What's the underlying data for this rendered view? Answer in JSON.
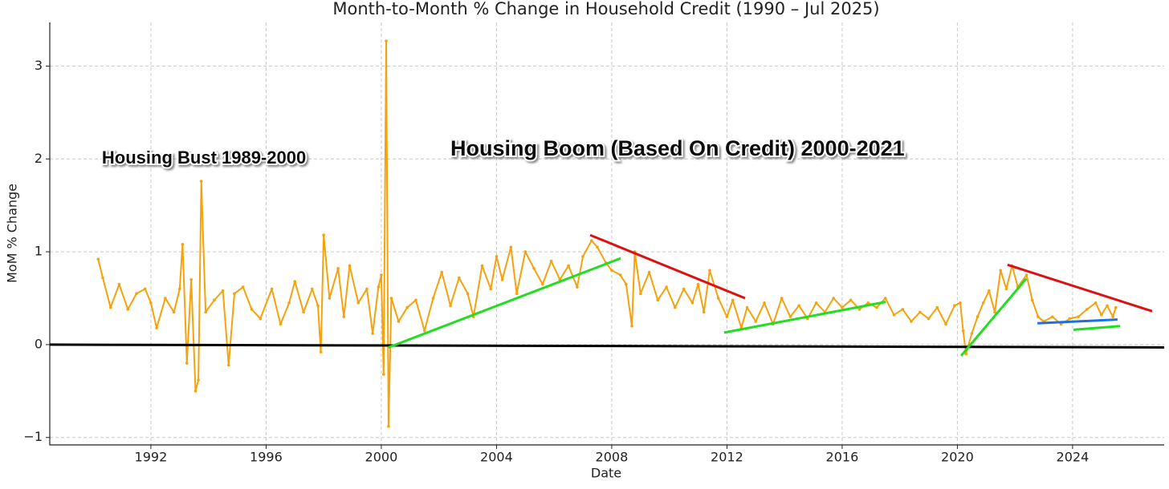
{
  "chart_data": {
    "type": "line",
    "title": "Month-to-Month % Change in Household Credit (1990 – Jul 2025)",
    "xlabel": "Date",
    "ylabel": "MoM % Change",
    "annotations": [
      {
        "text": "Housing Bust 1989-2000",
        "x": 1990.3,
        "y": 2.0
      },
      {
        "text": "Housing Boom (Based On Credit) 2000-2021",
        "x": 2002.4,
        "y": 2.1
      }
    ],
    "xlim": [
      1988.49,
      2027.18
    ],
    "ylim": [
      -1.08,
      3.47
    ],
    "xticks": [
      1992,
      1996,
      2000,
      2004,
      2008,
      2012,
      2016,
      2020,
      2024
    ],
    "yticks": [
      {
        "value": -1,
        "label": "−1"
      },
      0,
      1,
      2,
      3
    ],
    "grid": true,
    "series": [
      {
        "name": "MoM % Change",
        "color": "#f5a20c",
        "x": [
          1990.17,
          1990.33,
          1990.6,
          1990.9,
          1991.2,
          1991.5,
          1991.8,
          1992.0,
          1992.2,
          1992.5,
          1992.8,
          1993.0,
          1993.1,
          1993.25,
          1993.4,
          1993.55,
          1993.65,
          1993.75,
          1993.9,
          1994.2,
          1994.5,
          1994.7,
          1994.9,
          1995.2,
          1995.5,
          1995.8,
          1996.2,
          1996.5,
          1996.8,
          1997.0,
          1997.3,
          1997.6,
          1997.8,
          1997.9,
          1998.0,
          1998.2,
          1998.5,
          1998.7,
          1998.9,
          1999.2,
          1999.5,
          1999.7,
          1999.9,
          2000.0,
          2000.08,
          2000.17,
          2000.25,
          2000.35,
          2000.6,
          2000.9,
          2001.2,
          2001.5,
          2001.8,
          2002.1,
          2002.4,
          2002.7,
          2003.0,
          2003.2,
          2003.5,
          2003.8,
          2004.0,
          2004.2,
          2004.5,
          2004.7,
          2005.0,
          2005.3,
          2005.6,
          2005.9,
          2006.2,
          2006.5,
          2006.8,
          2007.0,
          2007.3,
          2007.5,
          2007.8,
          2008.0,
          2008.3,
          2008.5,
          2008.7,
          2008.8,
          2009.0,
          2009.3,
          2009.6,
          2009.9,
          2010.2,
          2010.5,
          2010.8,
          2011.0,
          2011.2,
          2011.4,
          2011.7,
          2012.0,
          2012.2,
          2012.5,
          2012.7,
          2013.0,
          2013.3,
          2013.6,
          2013.9,
          2014.2,
          2014.5,
          2014.8,
          2015.1,
          2015.4,
          2015.7,
          2016.0,
          2016.3,
          2016.6,
          2016.9,
          2017.2,
          2017.5,
          2017.8,
          2018.1,
          2018.4,
          2018.7,
          2019.0,
          2019.3,
          2019.6,
          2019.9,
          2020.1,
          2020.2,
          2020.3,
          2020.5,
          2020.7,
          2020.9,
          2021.1,
          2021.3,
          2021.5,
          2021.7,
          2021.9,
          2022.1,
          2022.4,
          2022.6,
          2022.8,
          2023.0,
          2023.3,
          2023.6,
          2023.9,
          2024.2,
          2024.5,
          2024.8,
          2025.0,
          2025.2,
          2025.4,
          2025.5
        ],
        "values": [
          0.92,
          0.72,
          0.4,
          0.65,
          0.38,
          0.55,
          0.6,
          0.45,
          0.18,
          0.5,
          0.35,
          0.6,
          1.08,
          -0.2,
          0.7,
          -0.5,
          -0.38,
          1.76,
          0.35,
          0.48,
          0.58,
          -0.22,
          0.55,
          0.62,
          0.38,
          0.28,
          0.6,
          0.22,
          0.45,
          0.68,
          0.35,
          0.6,
          0.42,
          -0.08,
          1.18,
          0.5,
          0.82,
          0.3,
          0.85,
          0.45,
          0.6,
          0.12,
          0.62,
          0.75,
          -0.32,
          3.27,
          -0.88,
          0.5,
          0.25,
          0.4,
          0.48,
          0.15,
          0.5,
          0.78,
          0.42,
          0.72,
          0.55,
          0.3,
          0.85,
          0.6,
          0.95,
          0.7,
          1.05,
          0.55,
          1.0,
          0.82,
          0.65,
          0.9,
          0.7,
          0.85,
          0.62,
          0.95,
          1.12,
          1.05,
          0.88,
          0.8,
          0.75,
          0.65,
          0.2,
          1.0,
          0.55,
          0.78,
          0.48,
          0.62,
          0.4,
          0.6,
          0.45,
          0.65,
          0.35,
          0.8,
          0.5,
          0.3,
          0.48,
          0.18,
          0.4,
          0.25,
          0.45,
          0.22,
          0.5,
          0.3,
          0.42,
          0.28,
          0.45,
          0.35,
          0.5,
          0.4,
          0.48,
          0.38,
          0.45,
          0.4,
          0.5,
          0.32,
          0.38,
          0.25,
          0.35,
          0.28,
          0.4,
          0.22,
          0.42,
          0.45,
          0.15,
          -0.1,
          0.12,
          0.3,
          0.45,
          0.58,
          0.35,
          0.8,
          0.6,
          0.85,
          0.62,
          0.75,
          0.48,
          0.3,
          0.25,
          0.3,
          0.22,
          0.28,
          0.3,
          0.38,
          0.45,
          0.32,
          0.42,
          0.3,
          0.4
        ]
      }
    ],
    "trend_lines": [
      {
        "color": "#000000",
        "x": [
          1988.49,
          2027.18
        ],
        "y": [
          0.0,
          -0.03
        ]
      },
      {
        "color": "#22dd22",
        "x": [
          2000.25,
          2008.31
        ],
        "y": [
          -0.03,
          0.93
        ]
      },
      {
        "color": "#dd1111",
        "x": [
          2007.25,
          2012.63
        ],
        "y": [
          1.18,
          0.5
        ]
      },
      {
        "color": "#22dd22",
        "x": [
          2011.9,
          2017.51
        ],
        "y": [
          0.13,
          0.46
        ]
      },
      {
        "color": "#22dd22",
        "x": [
          2020.13,
          2022.39
        ],
        "y": [
          -0.12,
          0.71
        ]
      },
      {
        "color": "#dd1111",
        "x": [
          2021.74,
          2026.76
        ],
        "y": [
          0.86,
          0.36
        ]
      },
      {
        "color": "#1e6fe0",
        "x": [
          2022.78,
          2025.56
        ],
        "y": [
          0.23,
          0.27
        ]
      },
      {
        "color": "#22dd22",
        "x": [
          2024.03,
          2025.65
        ],
        "y": [
          0.16,
          0.2
        ]
      }
    ]
  }
}
